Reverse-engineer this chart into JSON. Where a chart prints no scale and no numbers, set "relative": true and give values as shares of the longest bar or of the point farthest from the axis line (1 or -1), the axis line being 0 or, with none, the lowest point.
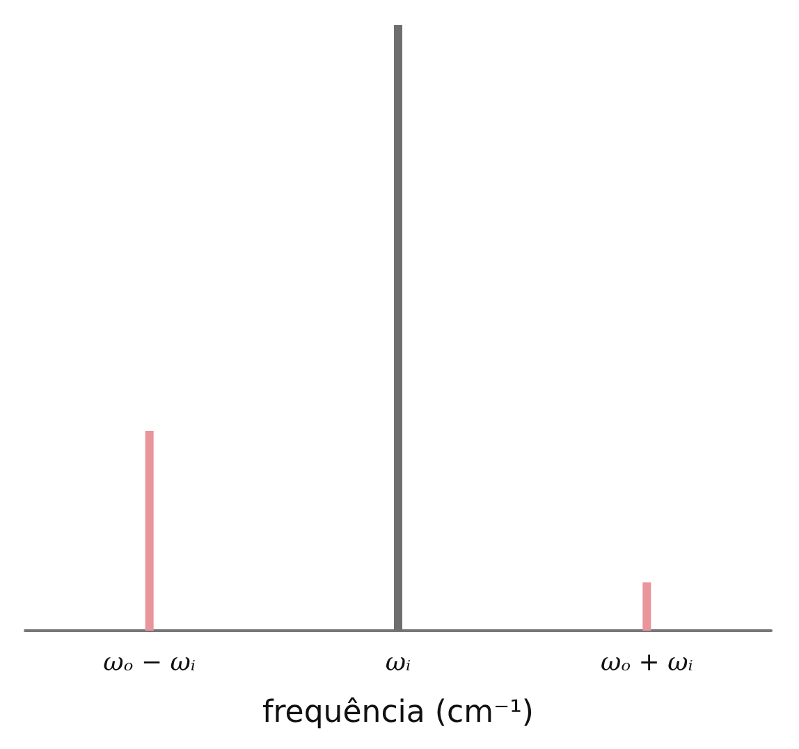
{
  "chart_data": {
    "type": "bar",
    "relative": true,
    "categories": [
      "ωₒ − ωᵢ",
      "ωᵢ",
      "ωₒ + ωᵢ"
    ],
    "values": [
      0.33,
      1,
      0.08
    ],
    "colors": [
      "#e8959b",
      "#6e6e6e",
      "#e8959b"
    ],
    "xlabel": "frequência (cm⁻¹)",
    "grid": false
  }
}
